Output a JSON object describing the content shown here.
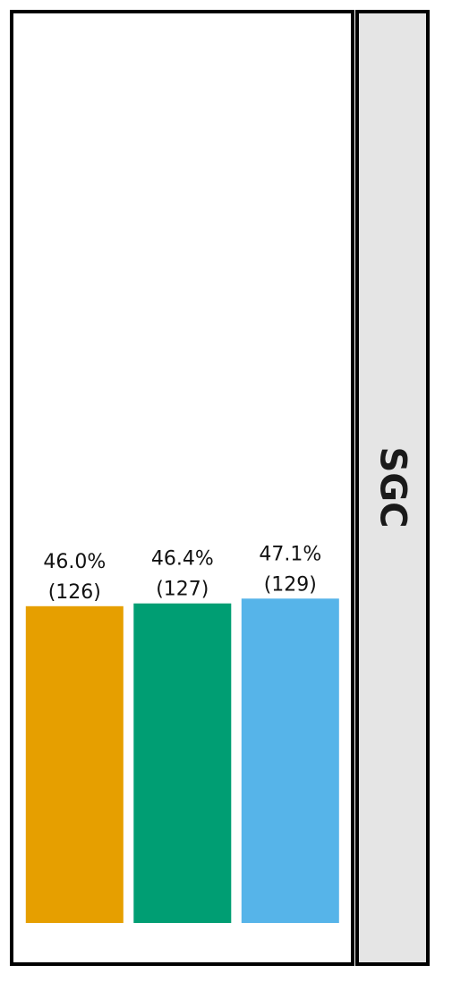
{
  "chart_data": {
    "type": "bar",
    "facet_label": "SGC",
    "categories": [
      "",
      "",
      ""
    ],
    "series": [
      {
        "values": [
          46.0,
          46.4,
          47.1
        ],
        "counts": [
          126,
          127,
          129
        ]
      }
    ],
    "bar_labels": {
      "percent": [
        "46.0%",
        "46.4%",
        "47.1%"
      ],
      "count": [
        "(126)",
        "(127)",
        "(129)"
      ]
    },
    "ylim": [
      0,
      116.3
    ],
    "grid": false,
    "legend": "none",
    "colors": [
      "#E69F00",
      "#009E73",
      "#56B4E9"
    ],
    "strip_color": "#E5E5E5",
    "frame_color": "#000000"
  }
}
